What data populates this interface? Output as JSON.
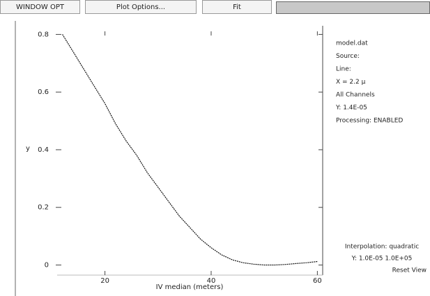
{
  "toolbar": {
    "buttons": [
      "WINDOW OPT",
      "Plot Options...",
      "Fit"
    ]
  },
  "side_panel": {
    "lines": [
      "model.dat",
      "Source:",
      "Line:",
      "X = 2.2 μ",
      "All Channels",
      "Y: 1.4E-05",
      "Processing: ENABLED"
    ],
    "footer": [
      "Interpolation: quadratic",
      "Y: 1.0E-05 1.0E+05",
      "Reset View"
    ]
  },
  "chart_data": {
    "type": "line",
    "x_label": "IV median (meters)",
    "y_label": "y",
    "x": [
      12,
      14,
      16,
      18,
      20,
      22,
      24,
      26,
      28,
      30,
      32,
      34,
      36,
      38,
      40,
      42,
      44,
      46,
      48,
      50,
      52,
      54,
      56,
      58,
      60
    ],
    "series": [
      {
        "color": "#111111",
        "values": [
          0.8,
          0.74,
          0.68,
          0.62,
          0.56,
          0.49,
          0.43,
          0.38,
          0.32,
          0.27,
          0.22,
          0.17,
          0.13,
          0.09,
          0.06,
          0.035,
          0.018,
          0.008,
          0.003,
          0,
          0,
          0.002,
          0.005,
          0.008,
          0.012
        ]
      }
    ],
    "xlim": [
      11,
      61
    ],
    "xticks": [
      20,
      40,
      60
    ],
    "ylim": [
      -0.035,
      0.83
    ],
    "yticks": [
      0,
      0.2,
      0.4,
      0.6,
      0.8
    ]
  }
}
